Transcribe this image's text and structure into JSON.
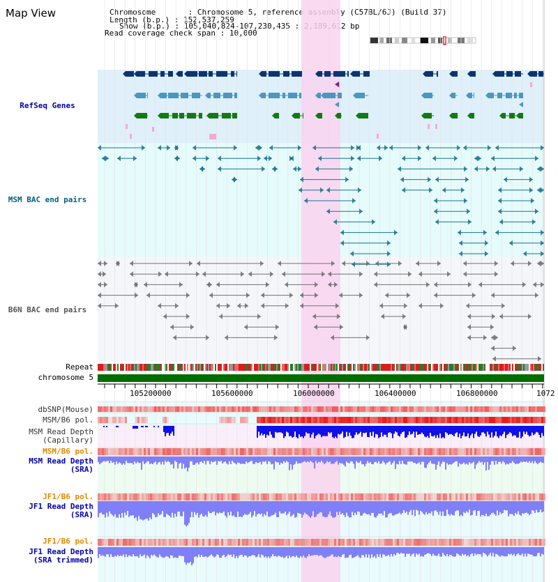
{
  "title": "Map View",
  "info": [
    {
      "key": "Chromosome",
      "value": "Chromosome 5, reference assembly (C57BL/6J) (Build 37)"
    },
    {
      "key": "Length (b.p.)",
      "value": "152,537,259"
    },
    {
      "key": "Show (b.p.)",
      "value": "105,040,824-107,230,435 : 2,189,612 bp"
    },
    {
      "key": "Read coverage check span",
      "value": "10,000"
    }
  ],
  "tracks": {
    "refseq": "RefSeq Genes",
    "msm_bac": "MSM BAC end pairs",
    "b6n_bac": "B6N BAC end pairs",
    "repeat": "Repeat",
    "chromosome": "chromosome 5",
    "dbsnp": "dbSNP(Mouse)",
    "msm_b6_pol_1": "MSM/B6 pol.",
    "msm_depth_cap_1": "MSM Read Depth",
    "msm_depth_cap_2": "(Capillary)",
    "msm_b6_pol_2": "MSM/B6 pol.",
    "msm_depth_sra_1": "MSM Read Depth",
    "msm_depth_sra_2": "(SRA)",
    "jf1_b6_pol_1": "JF1/B6 pol.",
    "jf1_depth_sra_1": "JF1 Read Depth",
    "jf1_depth_sra_2": "(SRA)",
    "jf1_b6_pol_2": "JF1/B6 pol.",
    "jf1_depth_trim_1": "JF1 Read Depth",
    "jf1_depth_trim_2": "(SRA trimmed)"
  },
  "axis": {
    "ticks": [
      "105200000",
      "105600000",
      "106000000",
      "106400000",
      "106800000",
      "1072"
    ]
  },
  "colors": {
    "refseq_bg": "#dff0fa",
    "msm_bac_bg": "#e6fbfb",
    "b6n_bac_bg": "#f4f6fa",
    "highlight": "#f9d4ef",
    "refseq_dark": "#0b3570",
    "refseq_mid": "#4a97c0",
    "refseq_green": "#127a12",
    "msm_bac_line": "#1a7391",
    "b6n_bac_line": "#707070",
    "chromosome_bar": "#006d00",
    "depth_blue": "#1010e8",
    "depth_light_blue": "#7f7ff8",
    "label_blue": "#0000aa",
    "label_teal": "#00607a",
    "label_orange": "#e08a00"
  }
}
